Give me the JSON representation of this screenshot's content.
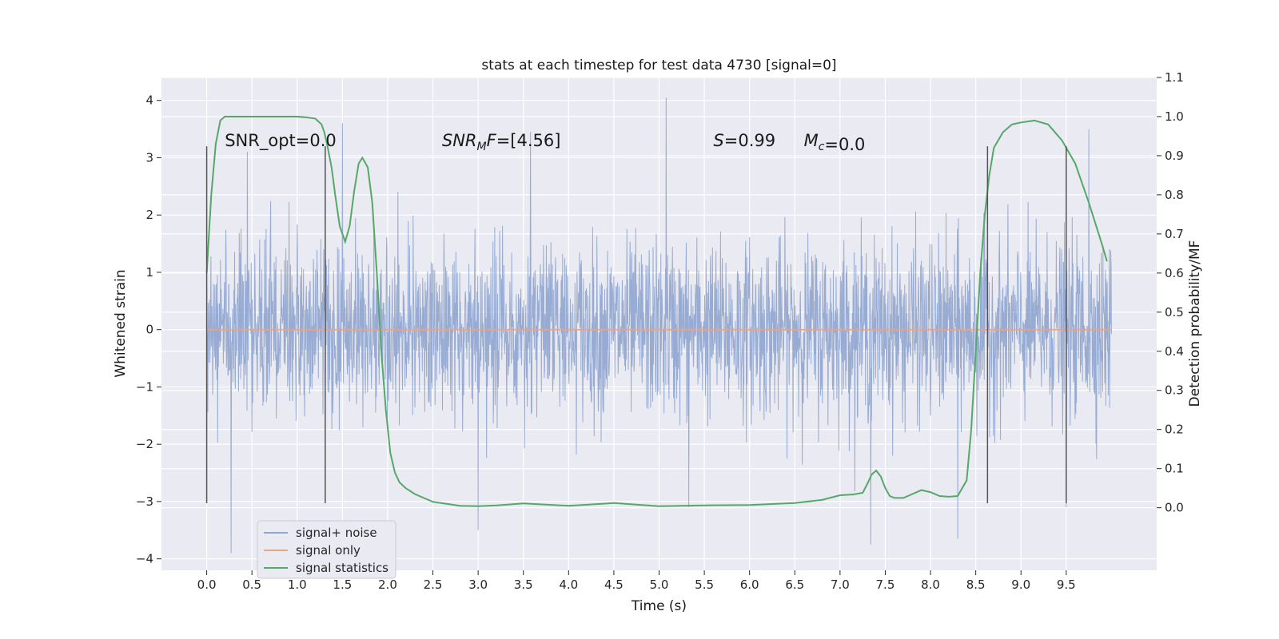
{
  "chart_data": {
    "type": "line",
    "title": "stats at each timestep for test data 4730 [signal=0]",
    "xlabel": "Time (s)",
    "ylabel": "Whitened strain",
    "y2label": "Detection probability/MF",
    "xlim": [
      -0.5,
      10.5
    ],
    "ylim": [
      -4.2,
      4.4
    ],
    "y2lim": [
      -0.16,
      1.1
    ],
    "x_ticks": [
      0.0,
      0.5,
      1.0,
      1.5,
      2.0,
      2.5,
      3.0,
      3.5,
      4.0,
      4.5,
      5.0,
      5.5,
      6.0,
      6.5,
      7.0,
      7.5,
      8.0,
      8.5,
      9.0,
      9.5
    ],
    "x_tick_labels": [
      "0.0",
      "0.5",
      "1.0",
      "1.5",
      "2.0",
      "2.5",
      "3.0",
      "3.5",
      "4.0",
      "4.5",
      "5.0",
      "5.5",
      "6.0",
      "6.5",
      "7.0",
      "7.5",
      "8.0",
      "8.5",
      "9.0",
      "9.5"
    ],
    "y_ticks": [
      4,
      3,
      2,
      1,
      0,
      -1,
      -2,
      -3,
      -4
    ],
    "y_tick_labels": [
      "4",
      "3",
      "2",
      "1",
      "0",
      "−1",
      "−2",
      "−3",
      "−4"
    ],
    "y2_ticks": [
      1.1,
      1.0,
      0.9,
      0.8,
      0.7,
      0.6,
      0.5,
      0.4,
      0.3,
      0.2,
      0.1,
      0.0
    ],
    "y2_tick_labels": [
      "1.1",
      "1.0",
      "0.9",
      "0.8",
      "0.7",
      "0.6",
      "0.5",
      "0.4",
      "0.3",
      "0.2",
      "0.1",
      "0.0"
    ],
    "grid": true,
    "legend_position": "lower-left",
    "annotations": [
      {
        "text": "SNR_opt=0.0",
        "x": 0.2
      },
      {
        "text": "SNR_MF=[4.56]",
        "x": 2.6
      },
      {
        "text": "S=0.99",
        "x": 5.6
      },
      {
        "text": "M_c=0.0",
        "x": 6.6
      }
    ],
    "annotation_y": 3.2,
    "window_markers": {
      "ymin": -3.03,
      "ymax": 3.2,
      "x": [
        0.0,
        1.31,
        8.63,
        9.5
      ]
    },
    "series": [
      {
        "name": "signal+ noise",
        "color": "#8fa5cf",
        "axis": "left",
        "x_range": [
          0.0,
          10.0
        ],
        "sample_rate": 256,
        "amplitude_std": 0.75,
        "notable_peaks": [
          {
            "x": 5.08,
            "y": 4.05
          },
          {
            "x": 0.27,
            "y": -3.9
          },
          {
            "x": 3.58,
            "y": 3.45
          },
          {
            "x": 7.34,
            "y": -3.75
          },
          {
            "x": 8.3,
            "y": -3.65
          },
          {
            "x": 3.0,
            "y": -3.5
          },
          {
            "x": 1.5,
            "y": 3.6
          },
          {
            "x": 9.75,
            "y": 3.5
          },
          {
            "x": 0.45,
            "y": 3.1
          },
          {
            "x": 9.5,
            "y": -3.1
          },
          {
            "x": 5.33,
            "y": -3.1
          }
        ]
      },
      {
        "name": "signal only",
        "color": "#e8a486",
        "axis": "left",
        "x": [
          0.0,
          10.0
        ],
        "y": [
          0.0,
          0.0
        ]
      },
      {
        "name": "signal statistics",
        "color": "#55a868",
        "axis": "right",
        "x": [
          0.0,
          0.05,
          0.1,
          0.15,
          0.2,
          0.3,
          0.5,
          0.8,
          1.0,
          1.1,
          1.2,
          1.27,
          1.3,
          1.33,
          1.38,
          1.42,
          1.47,
          1.53,
          1.58,
          1.63,
          1.68,
          1.72,
          1.78,
          1.83,
          1.88,
          1.93,
          1.98,
          2.03,
          2.08,
          2.13,
          2.2,
          2.3,
          2.5,
          2.8,
          3.0,
          3.2,
          3.5,
          4.0,
          4.5,
          5.0,
          5.5,
          6.0,
          6.5,
          6.8,
          7.0,
          7.15,
          7.25,
          7.3,
          7.35,
          7.4,
          7.45,
          7.5,
          7.55,
          7.6,
          7.7,
          7.8,
          7.9,
          8.0,
          8.1,
          8.2,
          8.3,
          8.4,
          8.45,
          8.5,
          8.55,
          8.6,
          8.65,
          8.7,
          8.8,
          8.9,
          9.0,
          9.15,
          9.3,
          9.45,
          9.6,
          9.75,
          9.9,
          9.95
        ],
        "y": [
          0.6,
          0.8,
          0.93,
          0.99,
          1.0,
          1.0,
          1.0,
          1.0,
          1.0,
          0.998,
          0.995,
          0.98,
          0.96,
          0.93,
          0.87,
          0.8,
          0.72,
          0.68,
          0.72,
          0.81,
          0.88,
          0.895,
          0.87,
          0.78,
          0.6,
          0.4,
          0.25,
          0.14,
          0.09,
          0.065,
          0.05,
          0.035,
          0.015,
          0.005,
          0.004,
          0.006,
          0.011,
          0.005,
          0.012,
          0.004,
          0.006,
          0.007,
          0.012,
          0.02,
          0.032,
          0.034,
          0.038,
          0.06,
          0.085,
          0.095,
          0.08,
          0.05,
          0.03,
          0.025,
          0.025,
          0.035,
          0.045,
          0.04,
          0.03,
          0.028,
          0.03,
          0.07,
          0.2,
          0.4,
          0.6,
          0.75,
          0.85,
          0.92,
          0.96,
          0.98,
          0.985,
          0.99,
          0.98,
          0.94,
          0.88,
          0.78,
          0.67,
          0.63
        ]
      }
    ]
  }
}
